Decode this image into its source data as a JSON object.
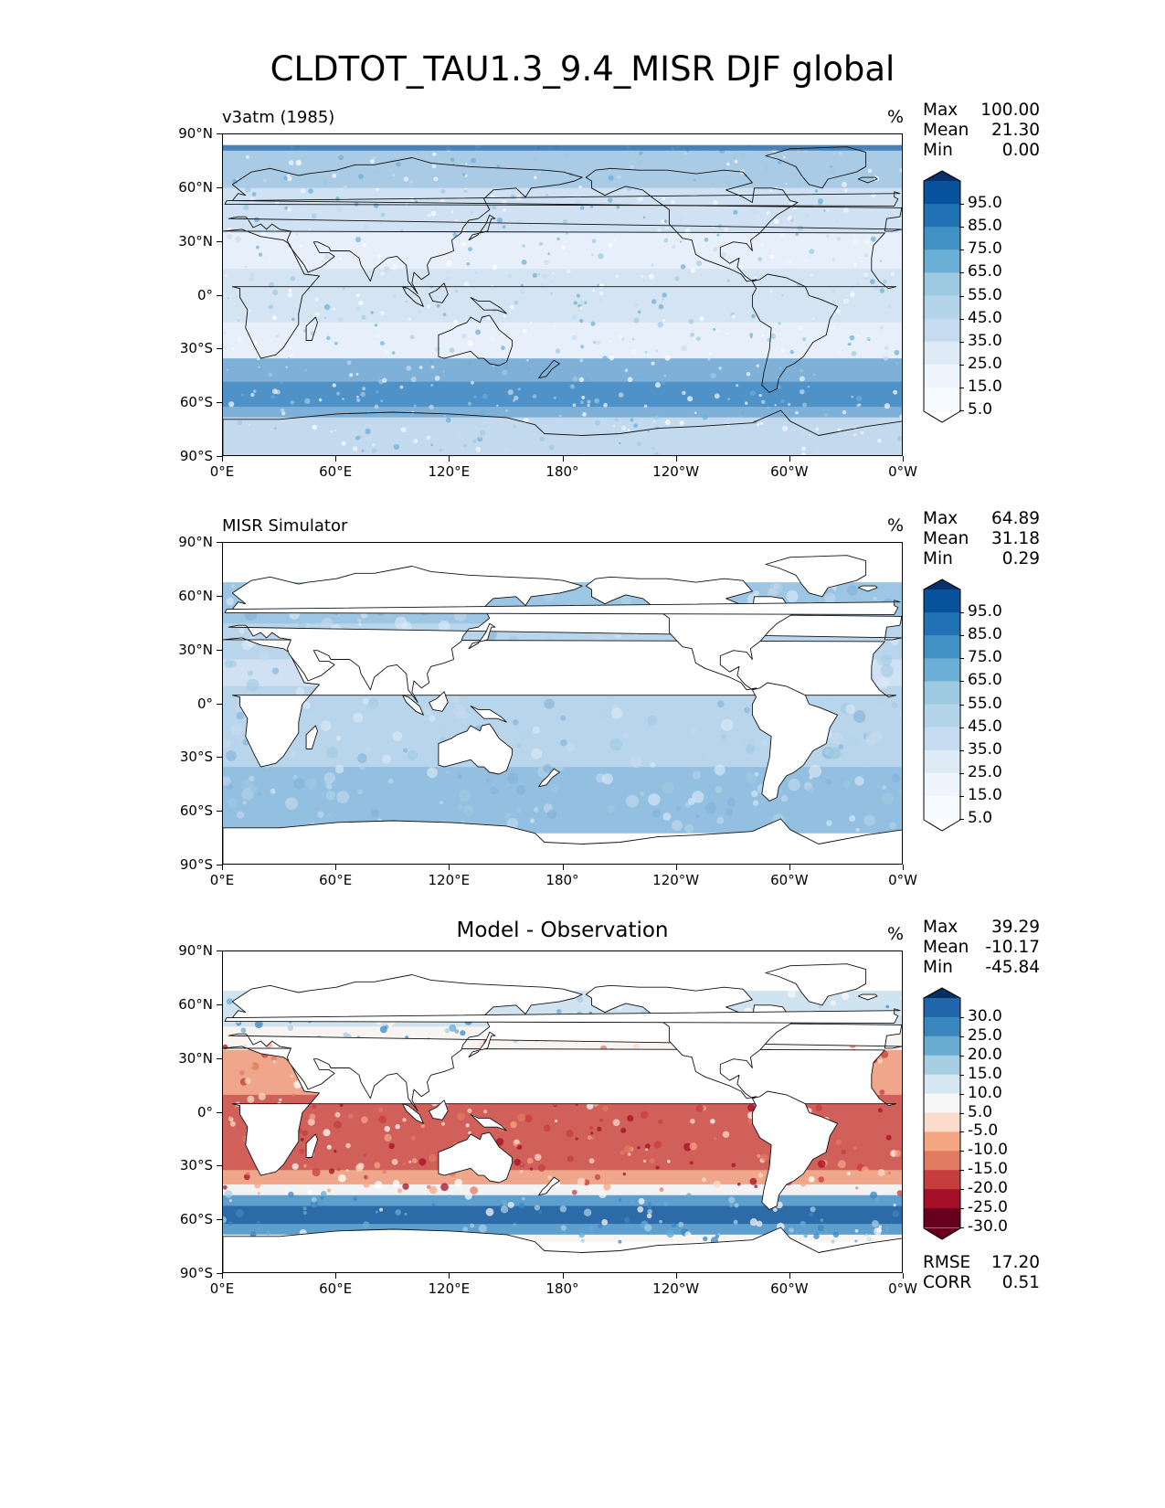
{
  "figure": {
    "title": "CLDTOT_TAU1.3_9.4_MISR DJF global"
  },
  "axes": {
    "y_ticks": [
      "90°N",
      "60°N",
      "30°N",
      "0°",
      "30°S",
      "60°S",
      "90°S"
    ],
    "x_ticks": [
      "0°E",
      "60°E",
      "120°E",
      "180°",
      "120°W",
      "60°W",
      "0°W"
    ]
  },
  "panels": [
    {
      "title": "v3atm (1985)",
      "unit": "%",
      "stats": [
        {
          "label": "Max",
          "value": "100.00"
        },
        {
          "label": "Mean",
          "value": "21.30"
        },
        {
          "label": "Min",
          "value": "0.00"
        }
      ],
      "colorbar": {
        "labels": [
          "95.0",
          "85.0",
          "75.0",
          "65.0",
          "55.0",
          "45.0",
          "35.0",
          "25.0",
          "15.0",
          "5.0"
        ],
        "colors": [
          "#08306b",
          "#08519c",
          "#2171b5",
          "#4292c6",
          "#6baed6",
          "#9ecae1",
          "#b4d4ea",
          "#c6dbef",
          "#deebf7",
          "#eef5fc",
          "#f7fbff",
          "#ffffff"
        ]
      }
    },
    {
      "title": "MISR Simulator",
      "unit": "%",
      "stats": [
        {
          "label": "Max",
          "value": "64.89"
        },
        {
          "label": "Mean",
          "value": "31.18"
        },
        {
          "label": "Min",
          "value": "0.29"
        }
      ],
      "colorbar": {
        "labels": [
          "95.0",
          "85.0",
          "75.0",
          "65.0",
          "55.0",
          "45.0",
          "35.0",
          "25.0",
          "15.0",
          "5.0"
        ],
        "colors": [
          "#08306b",
          "#08519c",
          "#2171b5",
          "#4292c6",
          "#6baed6",
          "#9ecae1",
          "#b4d4ea",
          "#c6dbef",
          "#deebf7",
          "#eef5fc",
          "#f7fbff",
          "#ffffff"
        ]
      }
    },
    {
      "title": "Model - Observation",
      "unit": "%",
      "stats": [
        {
          "label": "Max",
          "value": "39.29"
        },
        {
          "label": "Mean",
          "value": "-10.17"
        },
        {
          "label": "Min",
          "value": "-45.84"
        }
      ],
      "extra_stats": [
        {
          "label": "RMSE",
          "value": "17.20"
        },
        {
          "label": "CORR",
          "value": "0.51"
        }
      ],
      "colorbar": {
        "labels": [
          "30.0",
          "25.0",
          "20.0",
          "15.0",
          "10.0",
          "5.0",
          "-5.0",
          "-10.0",
          "-15.0",
          "-20.0",
          "-25.0",
          "-30.0"
        ],
        "colors": [
          "#053061",
          "#2166ac",
          "#3a87c0",
          "#6aacd0",
          "#a7cfe4",
          "#d5e7f1",
          "#f7f7f7",
          "#fbdccb",
          "#f4a582",
          "#e07b62",
          "#c53e3d",
          "#a50f27",
          "#67001f"
        ]
      }
    }
  ]
}
